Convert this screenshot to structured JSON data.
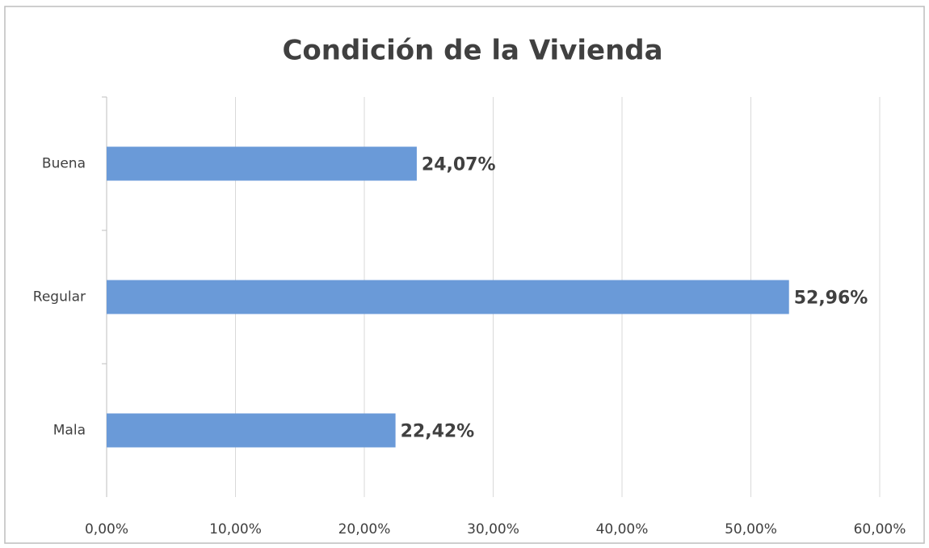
{
  "chart_data": {
    "type": "bar",
    "orientation": "horizontal",
    "title": "Condición de la Vivienda",
    "categories": [
      "Buena",
      "Regular",
      "Mala"
    ],
    "values": [
      24.07,
      52.96,
      22.42
    ],
    "value_labels": [
      "24,07%",
      "52,96%",
      "22,42%"
    ],
    "color": "#6a9ad8",
    "xlim": [
      0,
      60
    ],
    "xticks": [
      {
        "value": 0,
        "label": "0,00%"
      },
      {
        "value": 10,
        "label": "10,00%"
      },
      {
        "value": 20,
        "label": "20,00%"
      },
      {
        "value": 30,
        "label": "30,00%"
      },
      {
        "value": 40,
        "label": "40,00%"
      },
      {
        "value": 50,
        "label": "50,00%"
      },
      {
        "value": 60,
        "label": "60,00%"
      }
    ],
    "grid": true
  }
}
